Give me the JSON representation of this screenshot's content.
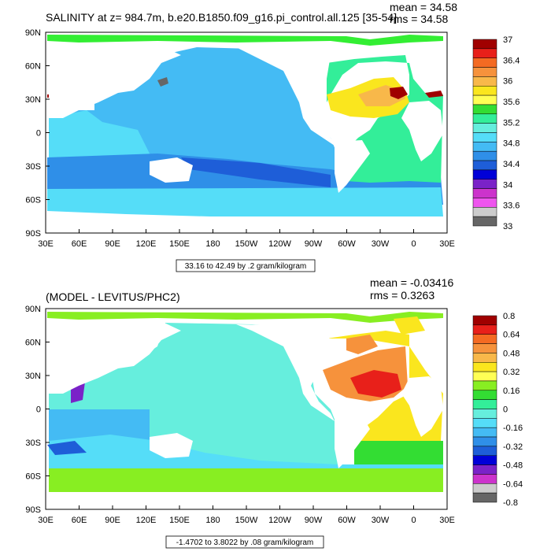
{
  "panel1": {
    "title": "SALINITY at z= 984.7m, b.e20.B1850.f09_g16.pi_control.all.125 [35-54]",
    "mean": "mean = 34.58",
    "rms": "rms = 34.58",
    "range_note": "33.16 to 42.49 by .2 gram/kilogram",
    "colorbar": {
      "labels": [
        "37",
        "36.4",
        "36",
        "35.6",
        "35.2",
        "34.8",
        "34.4",
        "34",
        "33.6",
        "33"
      ],
      "colors": [
        "#a00000",
        "#e8201a",
        "#f46a22",
        "#f6923c",
        "#f8b84a",
        "#fae61e",
        "#ffff55",
        "#33dd33",
        "#33ee99",
        "#66eedd",
        "#55ddf8",
        "#44bbf4",
        "#2f8fe8",
        "#1e5ed8",
        "#0000d8",
        "#7a22c8",
        "#cc33cc",
        "#ee55ee",
        "#cccccc",
        "#666666"
      ]
    }
  },
  "panel2": {
    "title": "(MODEL - LEVITUS/PHC2)",
    "mean": "mean = -0.03416",
    "rms": "rms = 0.3263",
    "range_note": "-1.4702 to 3.8022 by .08 gram/kilogram",
    "colorbar": {
      "labels": [
        "0.8",
        "0.64",
        "0.48",
        "0.32",
        "0.16",
        "0",
        "-0.16",
        "-0.32",
        "-0.48",
        "-0.64",
        "-0.8"
      ],
      "colors": [
        "#a00000",
        "#e8201a",
        "#f46a22",
        "#f6923c",
        "#f8b84a",
        "#fae61e",
        "#ffff55",
        "#88ee22",
        "#33dd33",
        "#33ee99",
        "#66eedd",
        "#55ddf8",
        "#44bbf4",
        "#2f8fe8",
        "#1e5ed8",
        "#0000d8",
        "#7a22c8",
        "#cc33cc",
        "#cccccc",
        "#666666"
      ]
    }
  },
  "axes": {
    "x_labels": [
      "30E",
      "60E",
      "90E",
      "120E",
      "150E",
      "180",
      "150W",
      "120W",
      "90W",
      "60W",
      "30W",
      "0",
      "30E"
    ],
    "y_labels": [
      "90N",
      "60N",
      "30N",
      "0",
      "30S",
      "60S",
      "90S"
    ]
  },
  "colors": {
    "land": "#ffffff",
    "ocean_base": "#55ddf8",
    "panel2_base": "#66eedd"
  }
}
